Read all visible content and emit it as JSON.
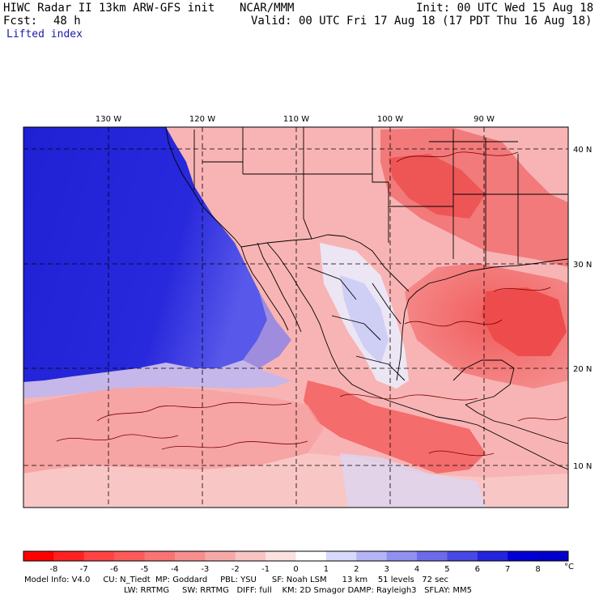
{
  "header": {
    "title": "HIWC Radar II 13km ARW-GFS init",
    "org": "NCAR/MMM",
    "init": "Init: 00 UTC Wed 15 Aug 18",
    "fcst_label": "Fcst:",
    "fcst_value": "48 h",
    "valid": "Valid: 00 UTC Fri 17 Aug 18 (17 PDT Thu 16 Aug 18)",
    "field": "Lifted index"
  },
  "map": {
    "lon_labels": [
      "130 W",
      "120 W",
      "110 W",
      "100 W",
      "90 W"
    ],
    "lat_labels": [
      "40 N",
      "30 N",
      "20 N",
      "10 N"
    ],
    "colors": {
      "ocean_deep": "#2424d8",
      "ocean_mid": "#6b6bf0",
      "land_warm": "#f07070",
      "land_light": "#f8b8b8",
      "neutral": "#f2eef6"
    }
  },
  "colorbar": {
    "labels": [
      "-8",
      "-7",
      "-6",
      "-5",
      "-4",
      "-3",
      "-2",
      "-1",
      "0",
      "1",
      "2",
      "3",
      "4",
      "5",
      "6",
      "7",
      "8"
    ],
    "unit": "°C",
    "colors": [
      "#ff0000",
      "#ff2222",
      "#ff4444",
      "#fb5a5a",
      "#f87474",
      "#f68e8e",
      "#f6a8a8",
      "#f8c4c4",
      "#fbe0e0",
      "#ffffff",
      "#d8d8fb",
      "#b4b4f6",
      "#9090f0",
      "#6c6cea",
      "#4848e4",
      "#2424dc",
      "#0000d4",
      "#0000cc"
    ]
  },
  "footer": {
    "line1": "Model Info: V4.0     CU: N_Tiedt  MP: Goddard     PBL: YSU      SF: Noah LSM      13 km    51 levels   72 sec",
    "line2": "LW: RRTMG     SW: RRTMG   DIFF: full    KM: 2D Smagor DAMP: Rayleigh3   SFLAY: MM5"
  }
}
